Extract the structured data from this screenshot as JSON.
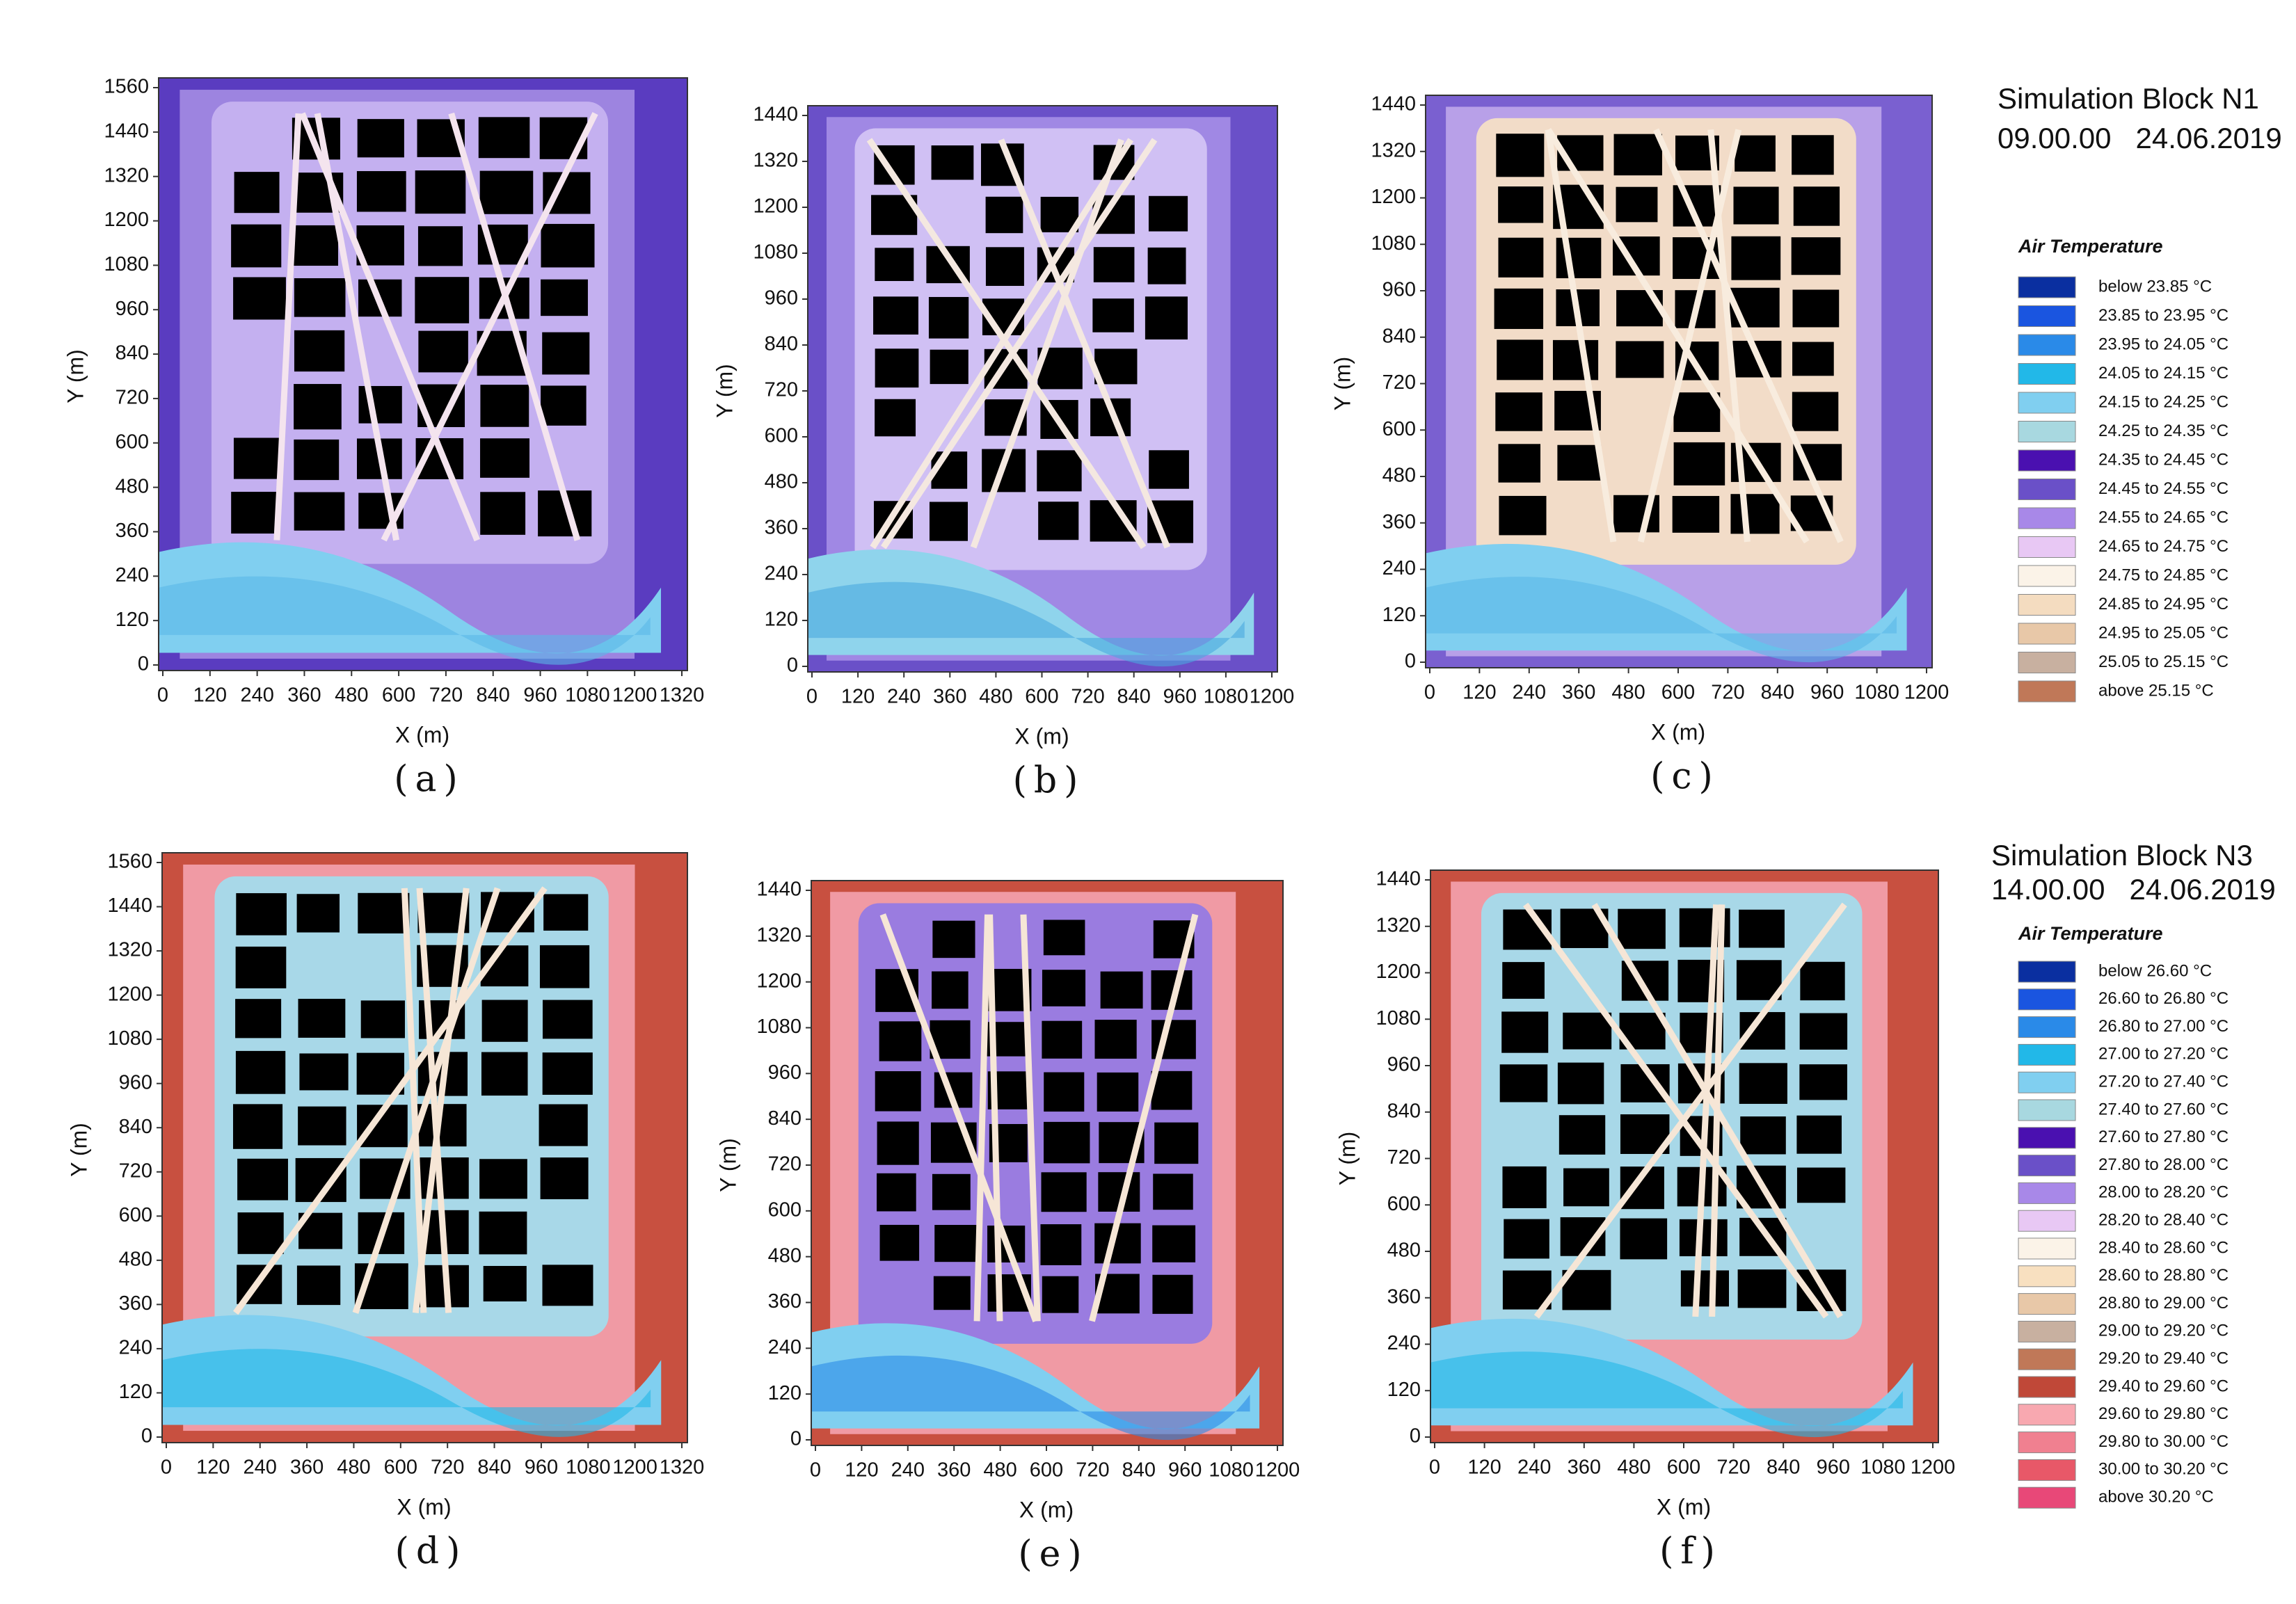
{
  "panels": [
    {
      "label": "(a)",
      "xlabel": "X (m)",
      "ylabel": "Y (m)",
      "xlim": [
        0,
        1320
      ],
      "ylim": [
        0,
        1560
      ],
      "xticks": [
        0,
        120,
        240,
        360,
        480,
        600,
        720,
        840,
        960,
        1080,
        1200,
        1320
      ],
      "yticks": [
        0,
        120,
        240,
        360,
        480,
        600,
        720,
        840,
        960,
        1080,
        1200,
        1320,
        1440,
        1560
      ]
    },
    {
      "label": "(b)",
      "xlabel": "X (m)",
      "ylabel": "Y (m)",
      "xlim": [
        0,
        1200
      ],
      "ylim": [
        0,
        1440
      ],
      "xticks": [
        0,
        120,
        240,
        360,
        480,
        600,
        720,
        840,
        960,
        1080,
        1200
      ],
      "yticks": [
        0,
        120,
        240,
        360,
        480,
        600,
        720,
        840,
        960,
        1080,
        1200,
        1320,
        1440
      ]
    },
    {
      "label": "(c)",
      "xlabel": "X (m)",
      "ylabel": "Y (m)",
      "xlim": [
        0,
        1200
      ],
      "ylim": [
        0,
        1440
      ],
      "xticks": [
        0,
        120,
        240,
        360,
        480,
        600,
        720,
        840,
        960,
        1080,
        1200
      ],
      "yticks": [
        0,
        120,
        240,
        360,
        480,
        600,
        720,
        840,
        960,
        1080,
        1200,
        1320,
        1440
      ]
    },
    {
      "label": "(d)",
      "xlabel": "X (m)",
      "ylabel": "Y (m)",
      "xlim": [
        0,
        1320
      ],
      "ylim": [
        0,
        1560
      ],
      "xticks": [
        0,
        120,
        240,
        360,
        480,
        600,
        720,
        840,
        960,
        1080,
        1200,
        1320
      ],
      "yticks": [
        0,
        120,
        240,
        360,
        480,
        600,
        720,
        840,
        960,
        1080,
        1200,
        1320,
        1440,
        1560
      ]
    },
    {
      "label": "(e)",
      "xlabel": "X (m)",
      "ylabel": "Y (m)",
      "xlim": [
        0,
        1200
      ],
      "ylim": [
        0,
        1440
      ],
      "xticks": [
        0,
        120,
        240,
        360,
        480,
        600,
        720,
        840,
        960,
        1080,
        1200
      ],
      "yticks": [
        0,
        120,
        240,
        360,
        480,
        600,
        720,
        840,
        960,
        1080,
        1200,
        1320,
        1440
      ]
    },
    {
      "label": "(f)",
      "xlabel": "X (m)",
      "ylabel": "Y (m)",
      "xlim": [
        0,
        1200
      ],
      "ylim": [
        0,
        1440
      ],
      "xticks": [
        0,
        120,
        240,
        360,
        480,
        600,
        720,
        840,
        960,
        1080,
        1200
      ],
      "yticks": [
        0,
        120,
        240,
        360,
        480,
        600,
        720,
        840,
        960,
        1080,
        1200,
        1320,
        1440
      ]
    }
  ],
  "legends": [
    {
      "title": "Simulation Block N1",
      "time": "09.00.00   24.06.2019",
      "heading": "Air Temperature",
      "items": [
        {
          "label": "below 23.85 °C",
          "color": "#0a2fa0"
        },
        {
          "label": "23.85 to 23.95 °C",
          "color": "#1a55e0"
        },
        {
          "label": "23.95 to 24.05 °C",
          "color": "#2a8ae8"
        },
        {
          "label": "24.05 to 24.15 °C",
          "color": "#22b8e8"
        },
        {
          "label": "24.15 to 24.25 °C",
          "color": "#80cff0"
        },
        {
          "label": "24.25 to 24.35 °C",
          "color": "#a8d8e0"
        },
        {
          "label": "24.35 to 24.45 °C",
          "color": "#4a10b0"
        },
        {
          "label": "24.45 to 24.55 °C",
          "color": "#6a50c8"
        },
        {
          "label": "24.55 to 24.65 °C",
          "color": "#a888e8"
        },
        {
          "label": "24.65 to 24.75 °C",
          "color": "#e8c8f4"
        },
        {
          "label": "24.75 to 24.85 °C",
          "color": "#fbf3e8"
        },
        {
          "label": "24.85 to 24.95 °C",
          "color": "#f4dcc0"
        },
        {
          "label": "24.95 to 25.05 °C",
          "color": "#e8c8a8"
        },
        {
          "label": "25.05 to 25.15 °C",
          "color": "#c8b0a0"
        },
        {
          "label": "above 25.15 °C",
          "color": "#c07858"
        }
      ]
    },
    {
      "title": "Simulation Block N3",
      "time": "14.00.00   24.06.2019",
      "heading": "Air Temperature",
      "items": [
        {
          "label": "below 26.60 °C",
          "color": "#0a2fa0"
        },
        {
          "label": "26.60 to 26.80 °C",
          "color": "#1a55e0"
        },
        {
          "label": "26.80 to 27.00 °C",
          "color": "#2a8ae8"
        },
        {
          "label": "27.00 to 27.20 °C",
          "color": "#22b8e8"
        },
        {
          "label": "27.20 to 27.40 °C",
          "color": "#80cff0"
        },
        {
          "label": "27.40 to 27.60 °C",
          "color": "#a8d8e0"
        },
        {
          "label": "27.60 to 27.80 °C",
          "color": "#4a10b0"
        },
        {
          "label": "27.80 to 28.00 °C",
          "color": "#6a50c8"
        },
        {
          "label": "28.00 to 28.20 °C",
          "color": "#a888e8"
        },
        {
          "label": "28.20 to 28.40 °C",
          "color": "#e8c8f4"
        },
        {
          "label": "28.40 to 28.60 °C",
          "color": "#fbf3e8"
        },
        {
          "label": "28.60 to 28.80 °C",
          "color": "#f8e0c0"
        },
        {
          "label": "28.80 to 29.00 °C",
          "color": "#e8c8a8"
        },
        {
          "label": "29.00 to 29.20 °C",
          "color": "#c8b0a0"
        },
        {
          "label": "29.20 to 29.40 °C",
          "color": "#c07858"
        },
        {
          "label": "29.40 to 29.60 °C",
          "color": "#c04838"
        },
        {
          "label": "29.60 to 29.80 °C",
          "color": "#f8a8b0"
        },
        {
          "label": "29.80 to 30.00 °C",
          "color": "#f08090"
        },
        {
          "label": "30.00 to 30.20 °C",
          "color": "#e85868"
        },
        {
          "label": "above 30.20 °C",
          "color": "#e84878"
        }
      ]
    }
  ]
}
